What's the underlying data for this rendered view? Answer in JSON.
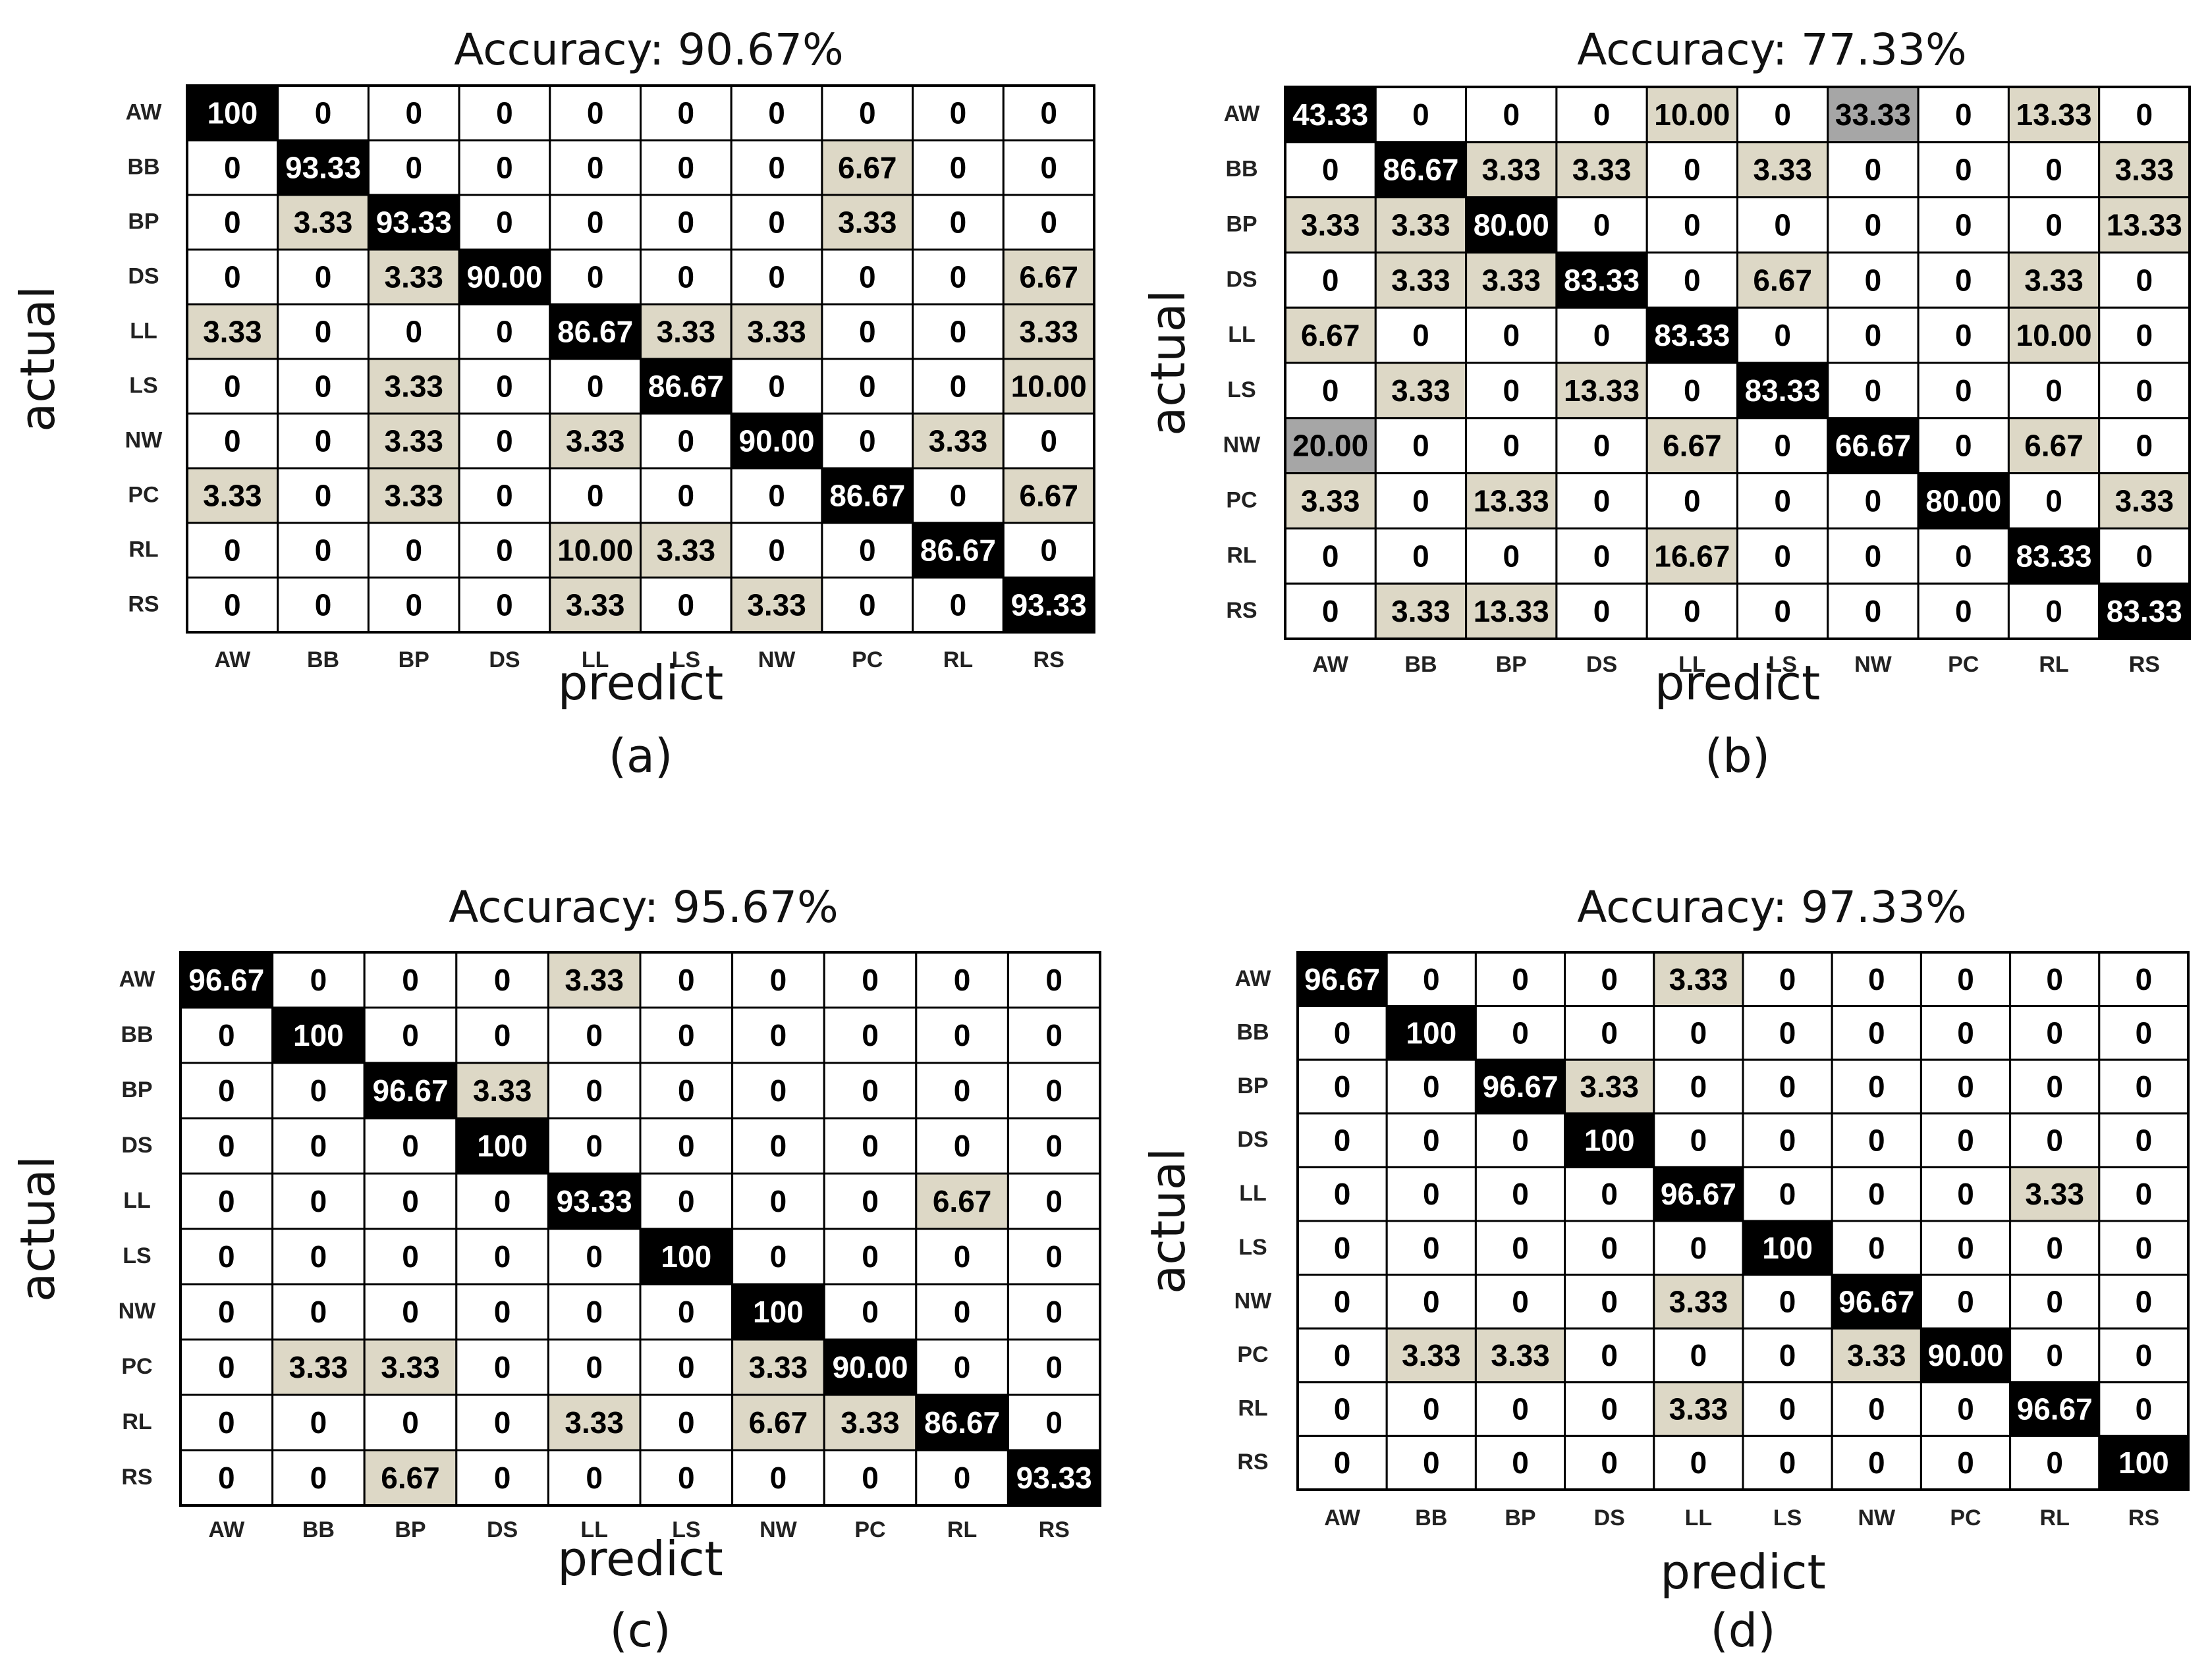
{
  "colors": {
    "diagonal": "#000000",
    "off_diagonal_small": "#ddd8c6",
    "off_diagonal_mid": "#a6a6a6",
    "off_diagonal_large": "#5a5a5a",
    "zero": "#ffffff",
    "grid": "#000000",
    "text_dark": "#000000",
    "text_light": "#ffffff"
  },
  "chart_data": [
    {
      "type": "heatmap",
      "title": "Accuracy: 90.67%",
      "xlabel": "predict",
      "ylabel": "actual",
      "caption": "(a)",
      "x_categories": [
        "AW",
        "BB",
        "BP",
        "DS",
        "LL",
        "LS",
        "NW",
        "PC",
        "RL",
        "RS"
      ],
      "y_categories": [
        "AW",
        "BB",
        "BP",
        "DS",
        "LL",
        "LS",
        "NW",
        "PC",
        "RL",
        "RS"
      ],
      "values": [
        [
          "100",
          "0",
          "0",
          "0",
          "0",
          "0",
          "0",
          "0",
          "0",
          "0"
        ],
        [
          "0",
          "93.33",
          "0",
          "0",
          "0",
          "0",
          "0",
          "6.67",
          "0",
          "0"
        ],
        [
          "0",
          "3.33",
          "93.33",
          "0",
          "0",
          "0",
          "0",
          "3.33",
          "0",
          "0"
        ],
        [
          "0",
          "0",
          "3.33",
          "90.00",
          "0",
          "0",
          "0",
          "0",
          "0",
          "6.67"
        ],
        [
          "3.33",
          "0",
          "0",
          "0",
          "86.67",
          "3.33",
          "3.33",
          "0",
          "0",
          "3.33"
        ],
        [
          "0",
          "0",
          "3.33",
          "0",
          "0",
          "86.67",
          "0",
          "0",
          "0",
          "10.00"
        ],
        [
          "0",
          "0",
          "3.33",
          "0",
          "3.33",
          "0",
          "90.00",
          "0",
          "3.33",
          "0"
        ],
        [
          "3.33",
          "0",
          "3.33",
          "0",
          "0",
          "0",
          "0",
          "86.67",
          "0",
          "6.67"
        ],
        [
          "0",
          "0",
          "0",
          "0",
          "10.00",
          "3.33",
          "0",
          "0",
          "86.67",
          "0"
        ],
        [
          "0",
          "0",
          "0",
          "0",
          "3.33",
          "0",
          "3.33",
          "0",
          "0",
          "93.33"
        ]
      ]
    },
    {
      "type": "heatmap",
      "title": "Accuracy: 77.33%",
      "xlabel": "predict",
      "ylabel": "actual",
      "caption": "(b)",
      "x_categories": [
        "AW",
        "BB",
        "BP",
        "DS",
        "LL",
        "LS",
        "NW",
        "PC",
        "RL",
        "RS"
      ],
      "y_categories": [
        "AW",
        "BB",
        "BP",
        "DS",
        "LL",
        "LS",
        "NW",
        "PC",
        "RL",
        "RS"
      ],
      "values": [
        [
          "43.33",
          "0",
          "0",
          "0",
          "10.00",
          "0",
          "33.33",
          "0",
          "13.33",
          "0"
        ],
        [
          "0",
          "86.67",
          "3.33",
          "3.33",
          "0",
          "3.33",
          "0",
          "0",
          "0",
          "3.33"
        ],
        [
          "3.33",
          "3.33",
          "80.00",
          "0",
          "0",
          "0",
          "0",
          "0",
          "0",
          "13.33"
        ],
        [
          "0",
          "3.33",
          "3.33",
          "83.33",
          "0",
          "6.67",
          "0",
          "0",
          "3.33",
          "0"
        ],
        [
          "6.67",
          "0",
          "0",
          "0",
          "83.33",
          "0",
          "0",
          "0",
          "10.00",
          "0"
        ],
        [
          "0",
          "3.33",
          "0",
          "13.33",
          "0",
          "83.33",
          "0",
          "0",
          "0",
          "0"
        ],
        [
          "20.00",
          "0",
          "0",
          "0",
          "6.67",
          "0",
          "66.67",
          "0",
          "6.67",
          "0"
        ],
        [
          "3.33",
          "0",
          "13.33",
          "0",
          "0",
          "0",
          "0",
          "80.00",
          "0",
          "3.33"
        ],
        [
          "0",
          "0",
          "0",
          "0",
          "16.67",
          "0",
          "0",
          "0",
          "83.33",
          "0"
        ],
        [
          "0",
          "3.33",
          "13.33",
          "0",
          "0",
          "0",
          "0",
          "0",
          "0",
          "83.33"
        ]
      ]
    },
    {
      "type": "heatmap",
      "title": "Accuracy: 95.67%",
      "xlabel": "predict",
      "ylabel": "actual",
      "caption": "(c)",
      "x_categories": [
        "AW",
        "BB",
        "BP",
        "DS",
        "LL",
        "LS",
        "NW",
        "PC",
        "RL",
        "RS"
      ],
      "y_categories": [
        "AW",
        "BB",
        "BP",
        "DS",
        "LL",
        "LS",
        "NW",
        "PC",
        "RL",
        "RS"
      ],
      "values": [
        [
          "96.67",
          "0",
          "0",
          "0",
          "3.33",
          "0",
          "0",
          "0",
          "0",
          "0"
        ],
        [
          "0",
          "100",
          "0",
          "0",
          "0",
          "0",
          "0",
          "0",
          "0",
          "0"
        ],
        [
          "0",
          "0",
          "96.67",
          "3.33",
          "0",
          "0",
          "0",
          "0",
          "0",
          "0"
        ],
        [
          "0",
          "0",
          "0",
          "100",
          "0",
          "0",
          "0",
          "0",
          "0",
          "0"
        ],
        [
          "0",
          "0",
          "0",
          "0",
          "93.33",
          "0",
          "0",
          "0",
          "6.67",
          "0"
        ],
        [
          "0",
          "0",
          "0",
          "0",
          "0",
          "100",
          "0",
          "0",
          "0",
          "0"
        ],
        [
          "0",
          "0",
          "0",
          "0",
          "0",
          "0",
          "100",
          "0",
          "0",
          "0"
        ],
        [
          "0",
          "3.33",
          "3.33",
          "0",
          "0",
          "0",
          "3.33",
          "90.00",
          "0",
          "0"
        ],
        [
          "0",
          "0",
          "0",
          "0",
          "3.33",
          "0",
          "6.67",
          "3.33",
          "86.67",
          "0"
        ],
        [
          "0",
          "0",
          "6.67",
          "0",
          "0",
          "0",
          "0",
          "0",
          "0",
          "93.33"
        ]
      ]
    },
    {
      "type": "heatmap",
      "title": "Accuracy: 97.33%",
      "xlabel": "predict",
      "ylabel": "actual",
      "caption": "(d)",
      "x_categories": [
        "AW",
        "BB",
        "BP",
        "DS",
        "LL",
        "LS",
        "NW",
        "PC",
        "RL",
        "RS"
      ],
      "y_categories": [
        "AW",
        "BB",
        "BP",
        "DS",
        "LL",
        "LS",
        "NW",
        "PC",
        "RL",
        "RS"
      ],
      "values": [
        [
          "96.67",
          "0",
          "0",
          "0",
          "3.33",
          "0",
          "0",
          "0",
          "0",
          "0"
        ],
        [
          "0",
          "100",
          "0",
          "0",
          "0",
          "0",
          "0",
          "0",
          "0",
          "0"
        ],
        [
          "0",
          "0",
          "96.67",
          "3.33",
          "0",
          "0",
          "0",
          "0",
          "0",
          "0"
        ],
        [
          "0",
          "0",
          "0",
          "100",
          "0",
          "0",
          "0",
          "0",
          "0",
          "0"
        ],
        [
          "0",
          "0",
          "0",
          "0",
          "96.67",
          "0",
          "0",
          "0",
          "3.33",
          "0"
        ],
        [
          "0",
          "0",
          "0",
          "0",
          "0",
          "100",
          "0",
          "0",
          "0",
          "0"
        ],
        [
          "0",
          "0",
          "0",
          "0",
          "3.33",
          "0",
          "96.67",
          "0",
          "0",
          "0"
        ],
        [
          "0",
          "3.33",
          "3.33",
          "0",
          "0",
          "0",
          "3.33",
          "90.00",
          "0",
          "0"
        ],
        [
          "0",
          "0",
          "0",
          "0",
          "3.33",
          "0",
          "0",
          "0",
          "96.67",
          "0"
        ],
        [
          "0",
          "0",
          "0",
          "0",
          "0",
          "0",
          "0",
          "0",
          "0",
          "100"
        ]
      ]
    }
  ]
}
